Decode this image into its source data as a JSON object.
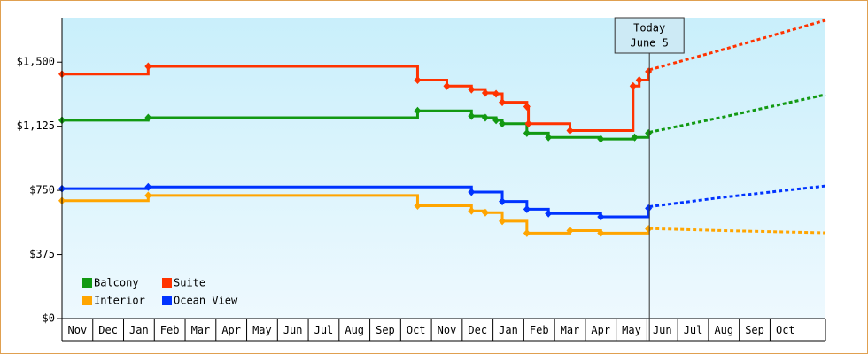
{
  "chart_data": {
    "type": "line",
    "xlim": [
      0,
      24.8
    ],
    "ylim": [
      0,
      1760
    ],
    "yticks": [
      {
        "value": 0,
        "label": "$0"
      },
      {
        "value": 375,
        "label": "$375"
      },
      {
        "value": 750,
        "label": "$750"
      },
      {
        "value": 1125,
        "label": "$1,125"
      },
      {
        "value": 1500,
        "label": "$1,500"
      }
    ],
    "xticks": [
      {
        "value": 0.5,
        "label": "Nov"
      },
      {
        "value": 1.5,
        "label": "Dec"
      },
      {
        "value": 2.5,
        "label": "Jan"
      },
      {
        "value": 3.5,
        "label": "Feb"
      },
      {
        "value": 4.5,
        "label": "Mar"
      },
      {
        "value": 5.5,
        "label": "Apr"
      },
      {
        "value": 6.5,
        "label": "May"
      },
      {
        "value": 7.5,
        "label": "Jun"
      },
      {
        "value": 8.5,
        "label": "Jul"
      },
      {
        "value": 9.5,
        "label": "Aug"
      },
      {
        "value": 10.5,
        "label": "Sep"
      },
      {
        "value": 11.5,
        "label": "Oct"
      },
      {
        "value": 12.5,
        "label": "Nov"
      },
      {
        "value": 13.5,
        "label": "Dec"
      },
      {
        "value": 14.5,
        "label": "Jan"
      },
      {
        "value": 15.5,
        "label": "Feb"
      },
      {
        "value": 16.5,
        "label": "Mar"
      },
      {
        "value": 17.5,
        "label": "Apr"
      },
      {
        "value": 18.5,
        "label": "May"
      },
      {
        "value": 19.5,
        "label": "Jun"
      },
      {
        "value": 20.5,
        "label": "Jul"
      },
      {
        "value": 21.5,
        "label": "Aug"
      },
      {
        "value": 22.5,
        "label": "Sep"
      },
      {
        "value": 23.5,
        "label": "Oct"
      }
    ],
    "today": {
      "x": 19.08,
      "label": [
        "Today",
        "June 5"
      ]
    },
    "series": [
      {
        "name": "Balcony",
        "color": "#129912",
        "x": [
          0,
          2.8,
          11.55,
          13.3,
          13.75,
          14.1,
          14.3,
          15.1,
          15.8,
          17.5,
          18.6,
          19.05
        ],
        "values": [
          1160,
          1175,
          1215,
          1185,
          1175,
          1160,
          1140,
          1085,
          1060,
          1050,
          1060,
          1085
        ],
        "forecast_x": [
          19.08,
          21.5,
          24.8
        ],
        "forecast": [
          1090,
          1180,
          1310
        ]
      },
      {
        "name": "Suite",
        "color": "#ff3300",
        "x": [
          0,
          2.8,
          11.55,
          12.5,
          13.3,
          13.75,
          14.1,
          14.3,
          15.1,
          15.15,
          16.5,
          18.55,
          18.75,
          19.05
        ],
        "values": [
          1430,
          1475,
          1395,
          1360,
          1340,
          1320,
          1315,
          1265,
          1240,
          1140,
          1100,
          1360,
          1395,
          1445
        ],
        "forecast_x": [
          19.08,
          21.5,
          24.8
        ],
        "forecast": [
          1455,
          1575,
          1745
        ]
      },
      {
        "name": "Interior",
        "color": "#ffa500",
        "x": [
          0,
          2.8,
          11.55,
          13.3,
          13.75,
          14.3,
          15.1,
          16.5,
          17.5,
          19.05
        ],
        "values": [
          690,
          720,
          660,
          630,
          620,
          570,
          500,
          515,
          500,
          525
        ],
        "forecast_x": [
          19.08,
          21.5,
          24.8
        ],
        "forecast": [
          527,
          515,
          502
        ]
      },
      {
        "name": "Ocean View",
        "color": "#0033ff",
        "x": [
          0,
          2.8,
          13.3,
          14.3,
          15.1,
          15.8,
          17.5,
          19.05
        ],
        "values": [
          760,
          770,
          740,
          685,
          640,
          615,
          595,
          645
        ],
        "forecast_x": [
          19.08,
          21.5,
          24.8
        ],
        "forecast": [
          655,
          710,
          776
        ]
      }
    ]
  }
}
